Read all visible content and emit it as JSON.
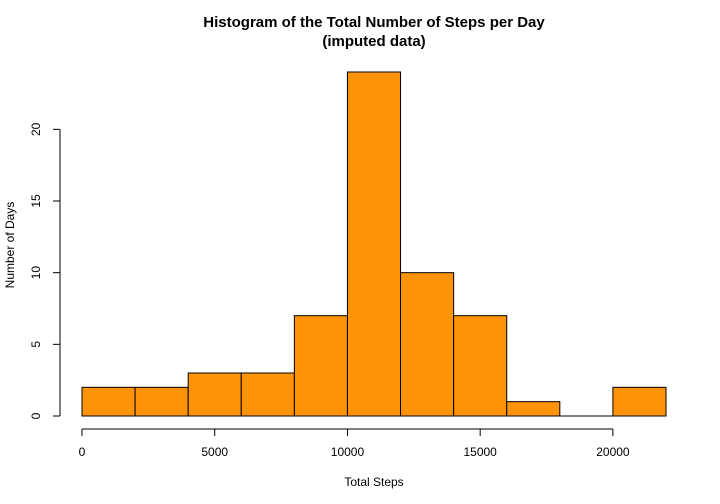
{
  "chart_data": {
    "type": "bar",
    "title": "Histogram of the Total Number of Steps per Day",
    "subtitle": "(imputed data)",
    "xlabel": "Total Steps",
    "ylabel": "Number of Days",
    "bins": [
      {
        "start": 0,
        "end": 2000,
        "count": 2
      },
      {
        "start": 2000,
        "end": 4000,
        "count": 2
      },
      {
        "start": 4000,
        "end": 6000,
        "count": 3
      },
      {
        "start": 6000,
        "end": 8000,
        "count": 3
      },
      {
        "start": 8000,
        "end": 10000,
        "count": 7
      },
      {
        "start": 10000,
        "end": 12000,
        "count": 24
      },
      {
        "start": 12000,
        "end": 14000,
        "count": 10
      },
      {
        "start": 14000,
        "end": 16000,
        "count": 7
      },
      {
        "start": 16000,
        "end": 18000,
        "count": 1
      },
      {
        "start": 18000,
        "end": 20000,
        "count": 0
      },
      {
        "start": 20000,
        "end": 22000,
        "count": 2
      }
    ],
    "xticks": [
      0,
      5000,
      10000,
      15000,
      20000
    ],
    "yticks": [
      0,
      5,
      10,
      15,
      20
    ],
    "xlim": [
      0,
      22000
    ],
    "ylim": [
      0,
      24
    ],
    "bar_color": "#FF9408",
    "grid": false,
    "legend": "none"
  }
}
